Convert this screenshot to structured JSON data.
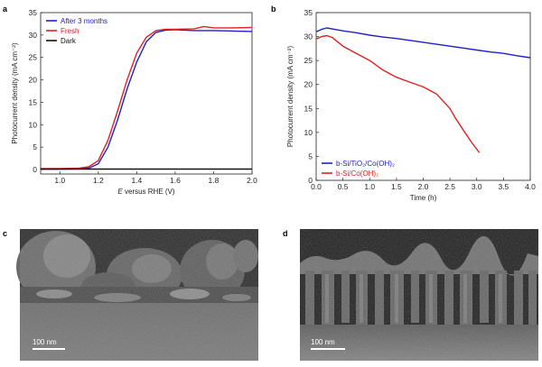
{
  "panels": {
    "a": "a",
    "b": "b",
    "c": "c",
    "d": "d"
  },
  "chart_data": [
    {
      "panel": "a",
      "type": "line",
      "xlabel_prefix": "E",
      "xlabel_rest": " versus RHE (V)",
      "ylabel": "Photocurrent density (mA cm⁻²)",
      "xlim": [
        0.9,
        2.0
      ],
      "ylim": [
        -1,
        35
      ],
      "xticks": [
        "1.0",
        "1.2",
        "1.4",
        "1.6",
        "1.8",
        "2.0"
      ],
      "yticks": [
        "0",
        "5",
        "10",
        "15",
        "20",
        "25",
        "30",
        "35"
      ],
      "legend_position": "top-left",
      "series": [
        {
          "name": "After 3 months",
          "color": "#2020c8",
          "x": [
            0.9,
            1.0,
            1.1,
            1.15,
            1.2,
            1.25,
            1.3,
            1.35,
            1.4,
            1.45,
            1.5,
            1.55,
            1.6,
            1.7,
            1.8,
            1.9,
            2.0
          ],
          "y": [
            0.1,
            0.1,
            0.15,
            0.3,
            1.3,
            5.0,
            11.0,
            18.0,
            24.0,
            28.5,
            30.6,
            31.1,
            31.2,
            31.0,
            31.0,
            30.9,
            30.8
          ]
        },
        {
          "name": "Fresh",
          "color": "#e02020",
          "x": [
            0.9,
            1.0,
            1.1,
            1.15,
            1.2,
            1.25,
            1.3,
            1.35,
            1.4,
            1.45,
            1.5,
            1.55,
            1.6,
            1.7,
            1.75,
            1.8,
            1.9,
            2.0
          ],
          "y": [
            0.2,
            0.2,
            0.3,
            0.6,
            2.0,
            6.5,
            13.0,
            20.0,
            26.0,
            29.5,
            31.0,
            31.3,
            31.3,
            31.4,
            31.9,
            31.6,
            31.6,
            31.7
          ]
        },
        {
          "name": "Dark",
          "color": "#111111",
          "x": [
            0.9,
            1.2,
            1.5,
            1.8,
            2.0
          ],
          "y": [
            0.1,
            0.1,
            0.1,
            0.1,
            0.1
          ]
        }
      ]
    },
    {
      "panel": "b",
      "type": "line",
      "xlabel": "Time (h)",
      "ylabel": "Photocurrent density (mA cm⁻²)",
      "xlim": [
        0.0,
        4.0
      ],
      "ylim": [
        0,
        35
      ],
      "xticks": [
        "0.0",
        "0.5",
        "1.0",
        "1.5",
        "2.0",
        "2.5",
        "3.0",
        "3.5",
        "4.0"
      ],
      "yticks": [
        "0",
        "5",
        "10",
        "15",
        "20",
        "25",
        "30",
        "35"
      ],
      "legend_position": "bottom-left",
      "series": [
        {
          "name": "b-Si/TiO₂/Co(OH)₂",
          "color": "#2020c8",
          "x": [
            0.0,
            0.1,
            0.2,
            0.3,
            0.5,
            0.75,
            1.0,
            1.25,
            1.5,
            1.75,
            2.0,
            2.25,
            2.5,
            2.75,
            3.0,
            3.25,
            3.5,
            3.75,
            4.0
          ],
          "y": [
            31.0,
            31.5,
            31.8,
            31.6,
            31.2,
            30.8,
            30.3,
            29.9,
            29.6,
            29.2,
            28.8,
            28.4,
            28.0,
            27.6,
            27.2,
            26.8,
            26.5,
            26.0,
            25.6
          ]
        },
        {
          "name": "b-Si/Co(OH)₂",
          "color": "#e02020",
          "x": [
            0.0,
            0.1,
            0.2,
            0.3,
            0.5,
            0.75,
            1.0,
            1.25,
            1.5,
            1.75,
            2.0,
            2.25,
            2.5,
            2.6,
            2.75,
            2.9,
            3.0,
            3.05
          ],
          "y": [
            29.5,
            30.0,
            30.2,
            29.8,
            28.0,
            26.5,
            25.0,
            23.0,
            21.5,
            20.5,
            19.5,
            18.0,
            15.0,
            13.0,
            10.5,
            8.0,
            6.5,
            5.8
          ]
        }
      ]
    }
  ],
  "micrographs": [
    {
      "panel": "c",
      "scalebar": "100 nm"
    },
    {
      "panel": "d",
      "scalebar": "100 nm"
    }
  ]
}
